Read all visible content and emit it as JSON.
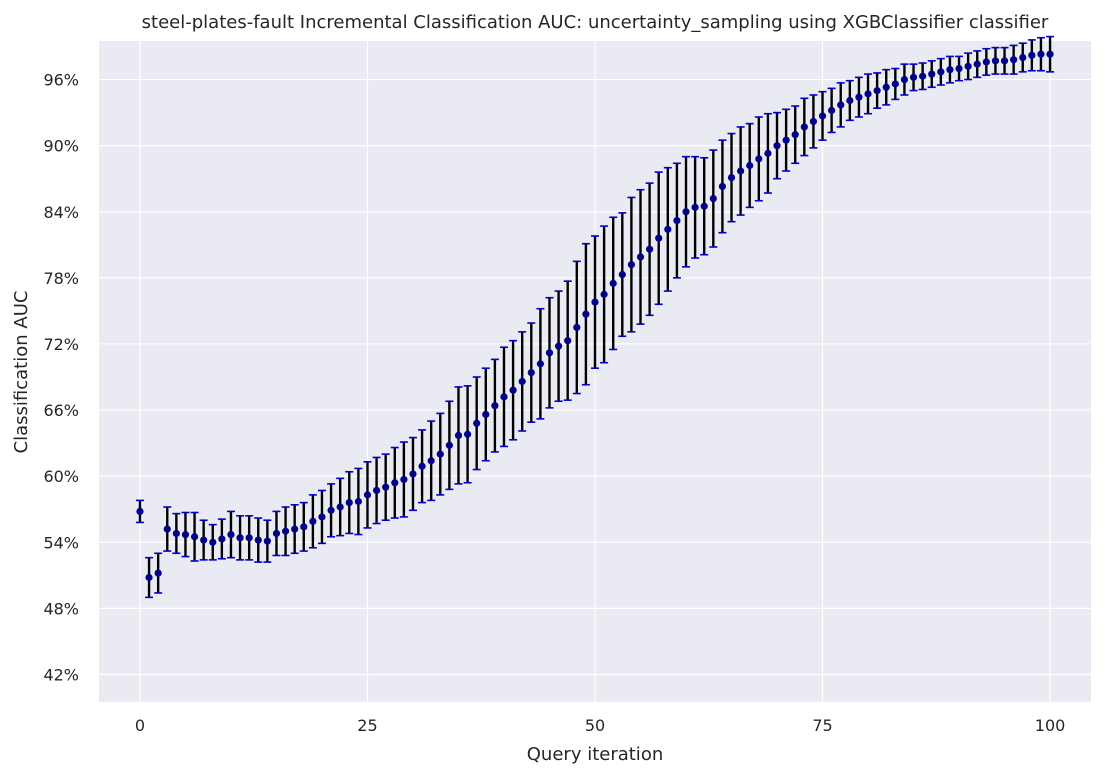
{
  "chart_data": {
    "type": "scatter",
    "title": "steel-plates-fault Incremental Classification AUC: uncertainty_sampling using XGBClassifier classifier",
    "xlabel": "Query iteration",
    "ylabel": "Classification AUC",
    "xlim": [
      -4.5,
      104.5
    ],
    "ylim": [
      0.395,
      0.995
    ],
    "xticks": [
      0,
      25,
      50,
      75,
      100
    ],
    "yticks": [
      0.42,
      0.48,
      0.54,
      0.6,
      0.66,
      0.72,
      0.78,
      0.84,
      0.9,
      0.96
    ],
    "ytick_format": "percent",
    "grid": true,
    "colors": {
      "background": "#eaeaf2",
      "grid": "#ffffff",
      "marker": "#00008b",
      "cap": "#0000cd",
      "errorbar": "#000000"
    },
    "series": [
      {
        "x": [
          0,
          1,
          2,
          3,
          4,
          5,
          6,
          7,
          8,
          9,
          10,
          11,
          12,
          13,
          14,
          15,
          16,
          17,
          18,
          19,
          20,
          21,
          22,
          23,
          24,
          25,
          26,
          27,
          28,
          29,
          30,
          31,
          32,
          33,
          34,
          35,
          36,
          37,
          38,
          39,
          40,
          41,
          42,
          43,
          44,
          45,
          46,
          47,
          48,
          49,
          50,
          51,
          52,
          53,
          54,
          55,
          56,
          57,
          58,
          59,
          60,
          61,
          62,
          63,
          64,
          65,
          66,
          67,
          68,
          69,
          70,
          71,
          72,
          73,
          74,
          75,
          76,
          77,
          78,
          79,
          80,
          81,
          82,
          83,
          84,
          85,
          86,
          87,
          88,
          89,
          90,
          91,
          92,
          93,
          94,
          95,
          96,
          97,
          98,
          99,
          100
        ],
        "y": [
          0.568,
          0.508,
          0.512,
          0.552,
          0.548,
          0.547,
          0.545,
          0.542,
          0.54,
          0.543,
          0.547,
          0.544,
          0.544,
          0.542,
          0.541,
          0.548,
          0.55,
          0.552,
          0.554,
          0.559,
          0.563,
          0.569,
          0.572,
          0.576,
          0.577,
          0.583,
          0.587,
          0.59,
          0.594,
          0.597,
          0.602,
          0.609,
          0.614,
          0.62,
          0.628,
          0.637,
          0.638,
          0.648,
          0.656,
          0.664,
          0.672,
          0.678,
          0.686,
          0.694,
          0.702,
          0.712,
          0.718,
          0.723,
          0.735,
          0.747,
          0.758,
          0.765,
          0.775,
          0.783,
          0.792,
          0.799,
          0.806,
          0.816,
          0.824,
          0.832,
          0.84,
          0.844,
          0.845,
          0.852,
          0.863,
          0.871,
          0.877,
          0.882,
          0.888,
          0.893,
          0.9,
          0.905,
          0.91,
          0.917,
          0.922,
          0.927,
          0.932,
          0.937,
          0.941,
          0.944,
          0.947,
          0.95,
          0.953,
          0.956,
          0.96,
          0.962,
          0.963,
          0.965,
          0.967,
          0.969,
          0.97,
          0.972,
          0.974,
          0.976,
          0.977,
          0.977,
          0.978,
          0.98,
          0.982,
          0.983,
          0.983
        ],
        "err": [
          0.01,
          0.018,
          0.018,
          0.02,
          0.018,
          0.02,
          0.022,
          0.018,
          0.016,
          0.018,
          0.021,
          0.02,
          0.02,
          0.02,
          0.019,
          0.02,
          0.022,
          0.022,
          0.022,
          0.024,
          0.024,
          0.024,
          0.026,
          0.028,
          0.03,
          0.03,
          0.03,
          0.03,
          0.032,
          0.034,
          0.033,
          0.033,
          0.036,
          0.037,
          0.04,
          0.044,
          0.044,
          0.042,
          0.042,
          0.042,
          0.045,
          0.045,
          0.045,
          0.045,
          0.05,
          0.05,
          0.05,
          0.054,
          0.06,
          0.064,
          0.06,
          0.062,
          0.06,
          0.056,
          0.061,
          0.061,
          0.06,
          0.06,
          0.056,
          0.052,
          0.05,
          0.046,
          0.044,
          0.044,
          0.042,
          0.04,
          0.04,
          0.038,
          0.038,
          0.036,
          0.03,
          0.028,
          0.026,
          0.026,
          0.024,
          0.022,
          0.02,
          0.02,
          0.018,
          0.018,
          0.018,
          0.016,
          0.016,
          0.014,
          0.014,
          0.012,
          0.012,
          0.012,
          0.012,
          0.012,
          0.011,
          0.012,
          0.012,
          0.012,
          0.012,
          0.012,
          0.013,
          0.013,
          0.014,
          0.015,
          0.016
        ]
      }
    ]
  }
}
